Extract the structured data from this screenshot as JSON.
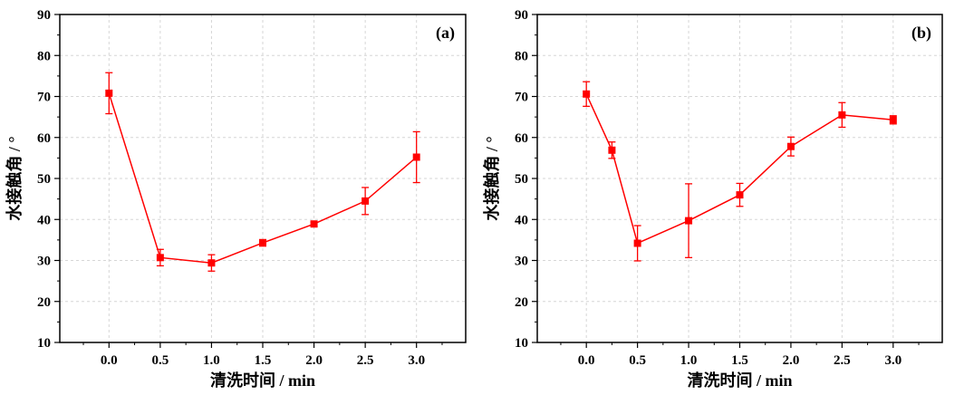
{
  "chart_data": [
    {
      "type": "line",
      "panel_label": "(a)",
      "xlabel": "清洗时间 / min",
      "ylabel": "水接触角 / °",
      "xlim": [
        -0.48,
        3.48
      ],
      "ylim": [
        10,
        90
      ],
      "xticks": [
        "0.0",
        "0.5",
        "1.0",
        "1.5",
        "2.0",
        "2.5",
        "3.0"
      ],
      "yticks": [
        "10",
        "20",
        "30",
        "40",
        "50",
        "60",
        "70",
        "80",
        "90"
      ],
      "grid": true,
      "color": "#ff0000",
      "points": [
        {
          "x": 0.0,
          "y": 70.8,
          "err": 5.0
        },
        {
          "x": 0.5,
          "y": 30.7,
          "err": 2.0
        },
        {
          "x": 1.0,
          "y": 29.4,
          "err": 2.0
        },
        {
          "x": 1.5,
          "y": 34.3,
          "err": 0.8
        },
        {
          "x": 2.0,
          "y": 38.9,
          "err": 0.5
        },
        {
          "x": 2.5,
          "y": 44.5,
          "err": 3.3
        },
        {
          "x": 3.0,
          "y": 55.2,
          "err": 6.2
        }
      ]
    },
    {
      "type": "line",
      "panel_label": "(b)",
      "xlabel": "清洗时间 / min",
      "ylabel": "水接触角 / °",
      "xlim": [
        -0.48,
        3.48
      ],
      "ylim": [
        10,
        90
      ],
      "xticks": [
        "0.0",
        "0.5",
        "1.0",
        "1.5",
        "2.0",
        "2.5",
        "3.0"
      ],
      "yticks": [
        "10",
        "20",
        "30",
        "40",
        "50",
        "60",
        "70",
        "80",
        "90"
      ],
      "grid": true,
      "color": "#ff0000",
      "points": [
        {
          "x": 0.0,
          "y": 70.6,
          "err": 3.0
        },
        {
          "x": 0.25,
          "y": 56.9,
          "err": 2.0
        },
        {
          "x": 0.5,
          "y": 34.2,
          "err": 4.3
        },
        {
          "x": 1.0,
          "y": 39.7,
          "err": 9.0
        },
        {
          "x": 1.5,
          "y": 46.0,
          "err": 2.8
        },
        {
          "x": 2.0,
          "y": 57.8,
          "err": 2.3
        },
        {
          "x": 2.5,
          "y": 65.5,
          "err": 3.0
        },
        {
          "x": 3.0,
          "y": 64.3,
          "err": 1.0
        }
      ]
    }
  ]
}
